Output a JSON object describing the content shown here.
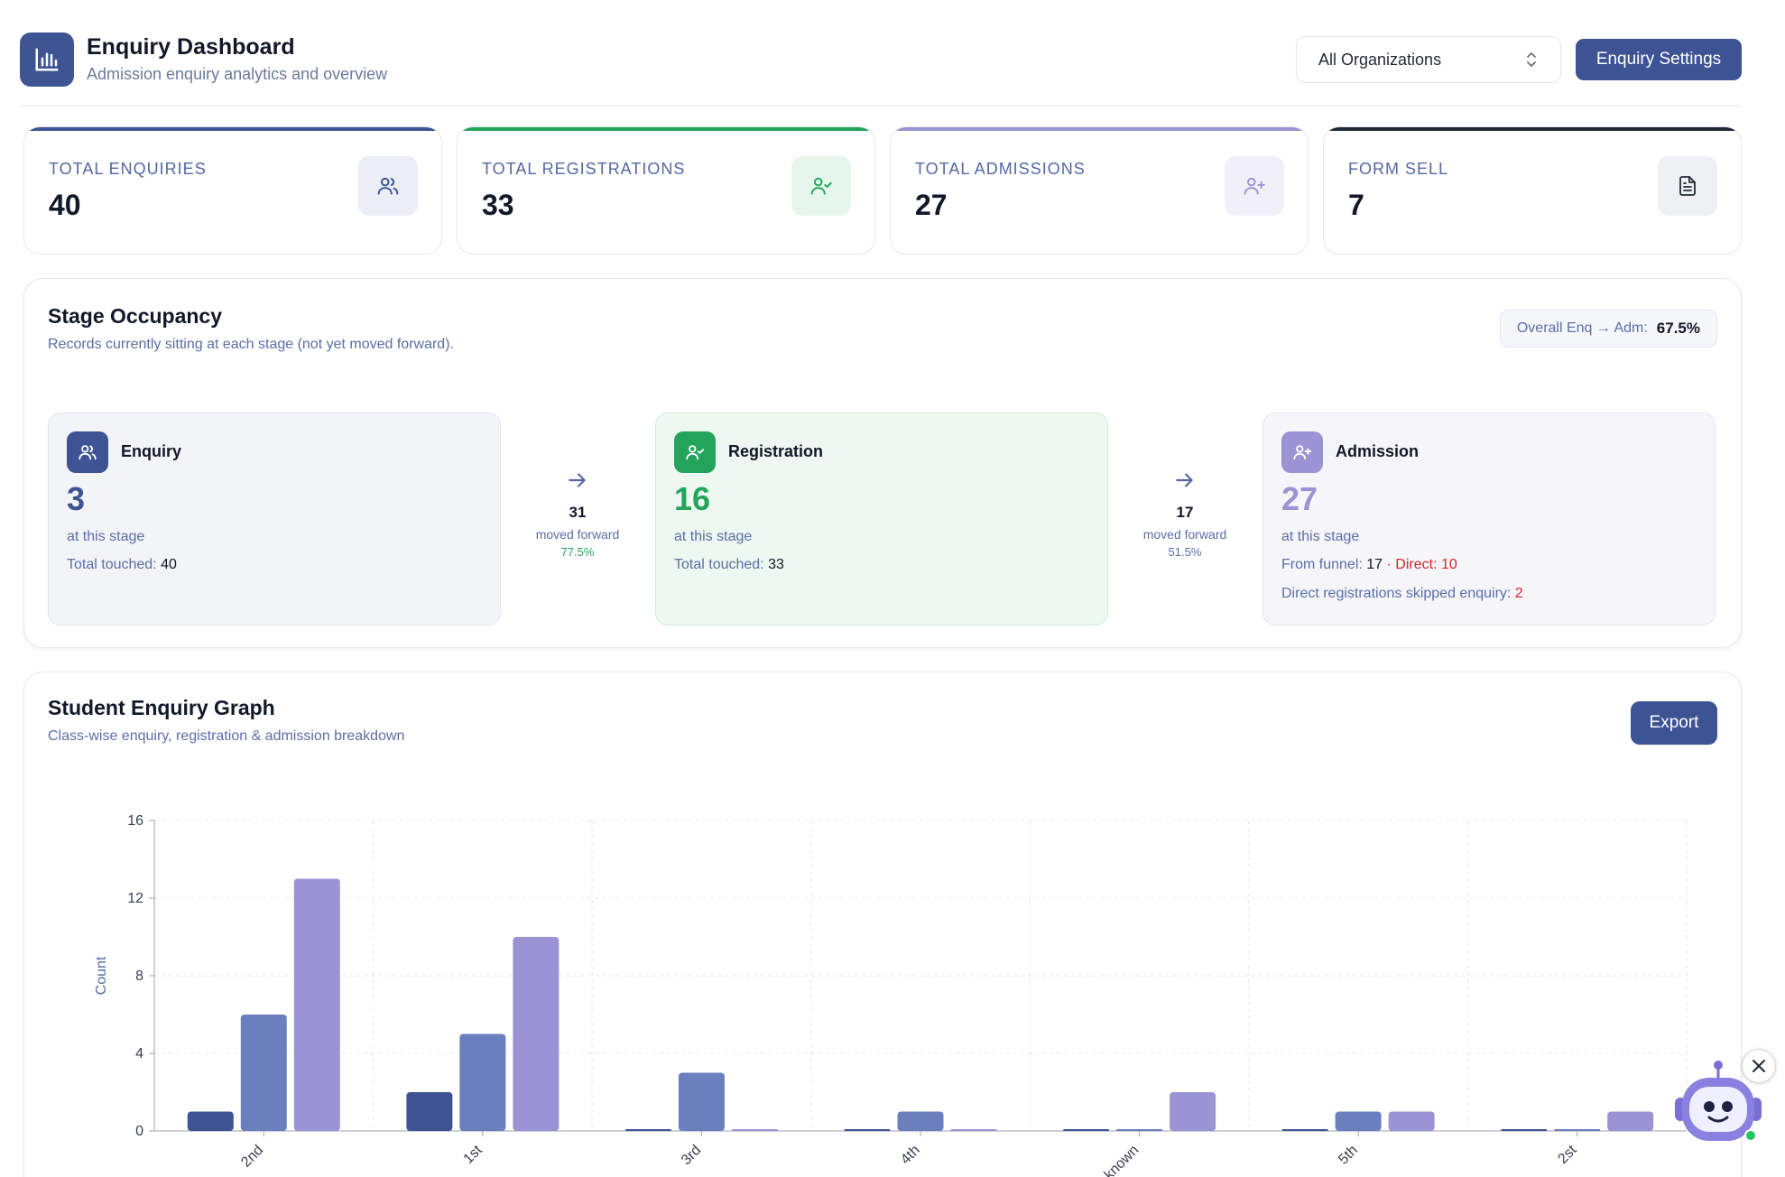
{
  "header": {
    "title": "Enquiry Dashboard",
    "subtitle": "Admission enquiry analytics and overview",
    "org_select": "All Organizations",
    "settings_label": "Enquiry Settings"
  },
  "stats": [
    {
      "label": "TOTAL ENQUIRIES",
      "value": "40",
      "icon": "users-icon",
      "accent": "#3d5394"
    },
    {
      "label": "TOTAL REGISTRATIONS",
      "value": "33",
      "icon": "user-check-icon",
      "accent": "#22a55b"
    },
    {
      "label": "TOTAL ADMISSIONS",
      "value": "27",
      "icon": "user-plus-icon",
      "accent": "#9b94d4"
    },
    {
      "label": "FORM SELL",
      "value": "7",
      "icon": "document-icon",
      "accent": "#1f2937"
    }
  ],
  "occupancy": {
    "title": "Stage Occupancy",
    "subtitle": "Records currently sitting at each stage (not yet moved forward).",
    "ratio_label": "Overall Enq → Adm:",
    "ratio_value": "67.5%",
    "stages": [
      {
        "name": "Enquiry",
        "count": "3",
        "at_stage": "at this stage",
        "touched_label": "Total touched:",
        "touched": "40"
      },
      {
        "name": "Registration",
        "count": "16",
        "at_stage": "at this stage",
        "touched_label": "Total touched:",
        "touched": "33"
      },
      {
        "name": "Admission",
        "count": "27",
        "at_stage": "at this stage",
        "funnel_label": "From funnel:",
        "funnel": "17",
        "direct_label": "· Direct:",
        "direct": "10",
        "skipped_label": "Direct registrations skipped enquiry:",
        "skipped": "2"
      }
    ],
    "flows": [
      {
        "count": "31",
        "text": "moved forward",
        "pct": "77.5%"
      },
      {
        "count": "17",
        "text": "moved forward",
        "pct": "51.5%"
      }
    ]
  },
  "graph": {
    "title": "Student Enquiry Graph",
    "subtitle": "Class-wise enquiry, registration & admission breakdown",
    "export_label": "Export"
  },
  "chart_data": {
    "type": "bar",
    "categories": [
      "2nd",
      "1st",
      "3rd",
      "4th",
      "known",
      "5th",
      "2st"
    ],
    "series": [
      {
        "values": [
          1,
          2,
          0,
          0,
          0,
          0,
          0
        ],
        "color": "#3d5394"
      },
      {
        "values": [
          6,
          5,
          3,
          1,
          0,
          1,
          0
        ],
        "color": "#6b7fbf"
      },
      {
        "values": [
          13,
          10,
          0,
          0,
          2,
          1,
          1
        ],
        "color": "#9b94d4"
      }
    ],
    "ylabel": "Count",
    "ylim": [
      0,
      16
    ],
    "yticks": [
      0,
      4,
      8,
      12,
      16
    ],
    "grid": true
  },
  "colors": {
    "primary": "#3d5394",
    "green": "#22a55b",
    "lavender": "#9b94d4",
    "red": "#dc2626"
  }
}
